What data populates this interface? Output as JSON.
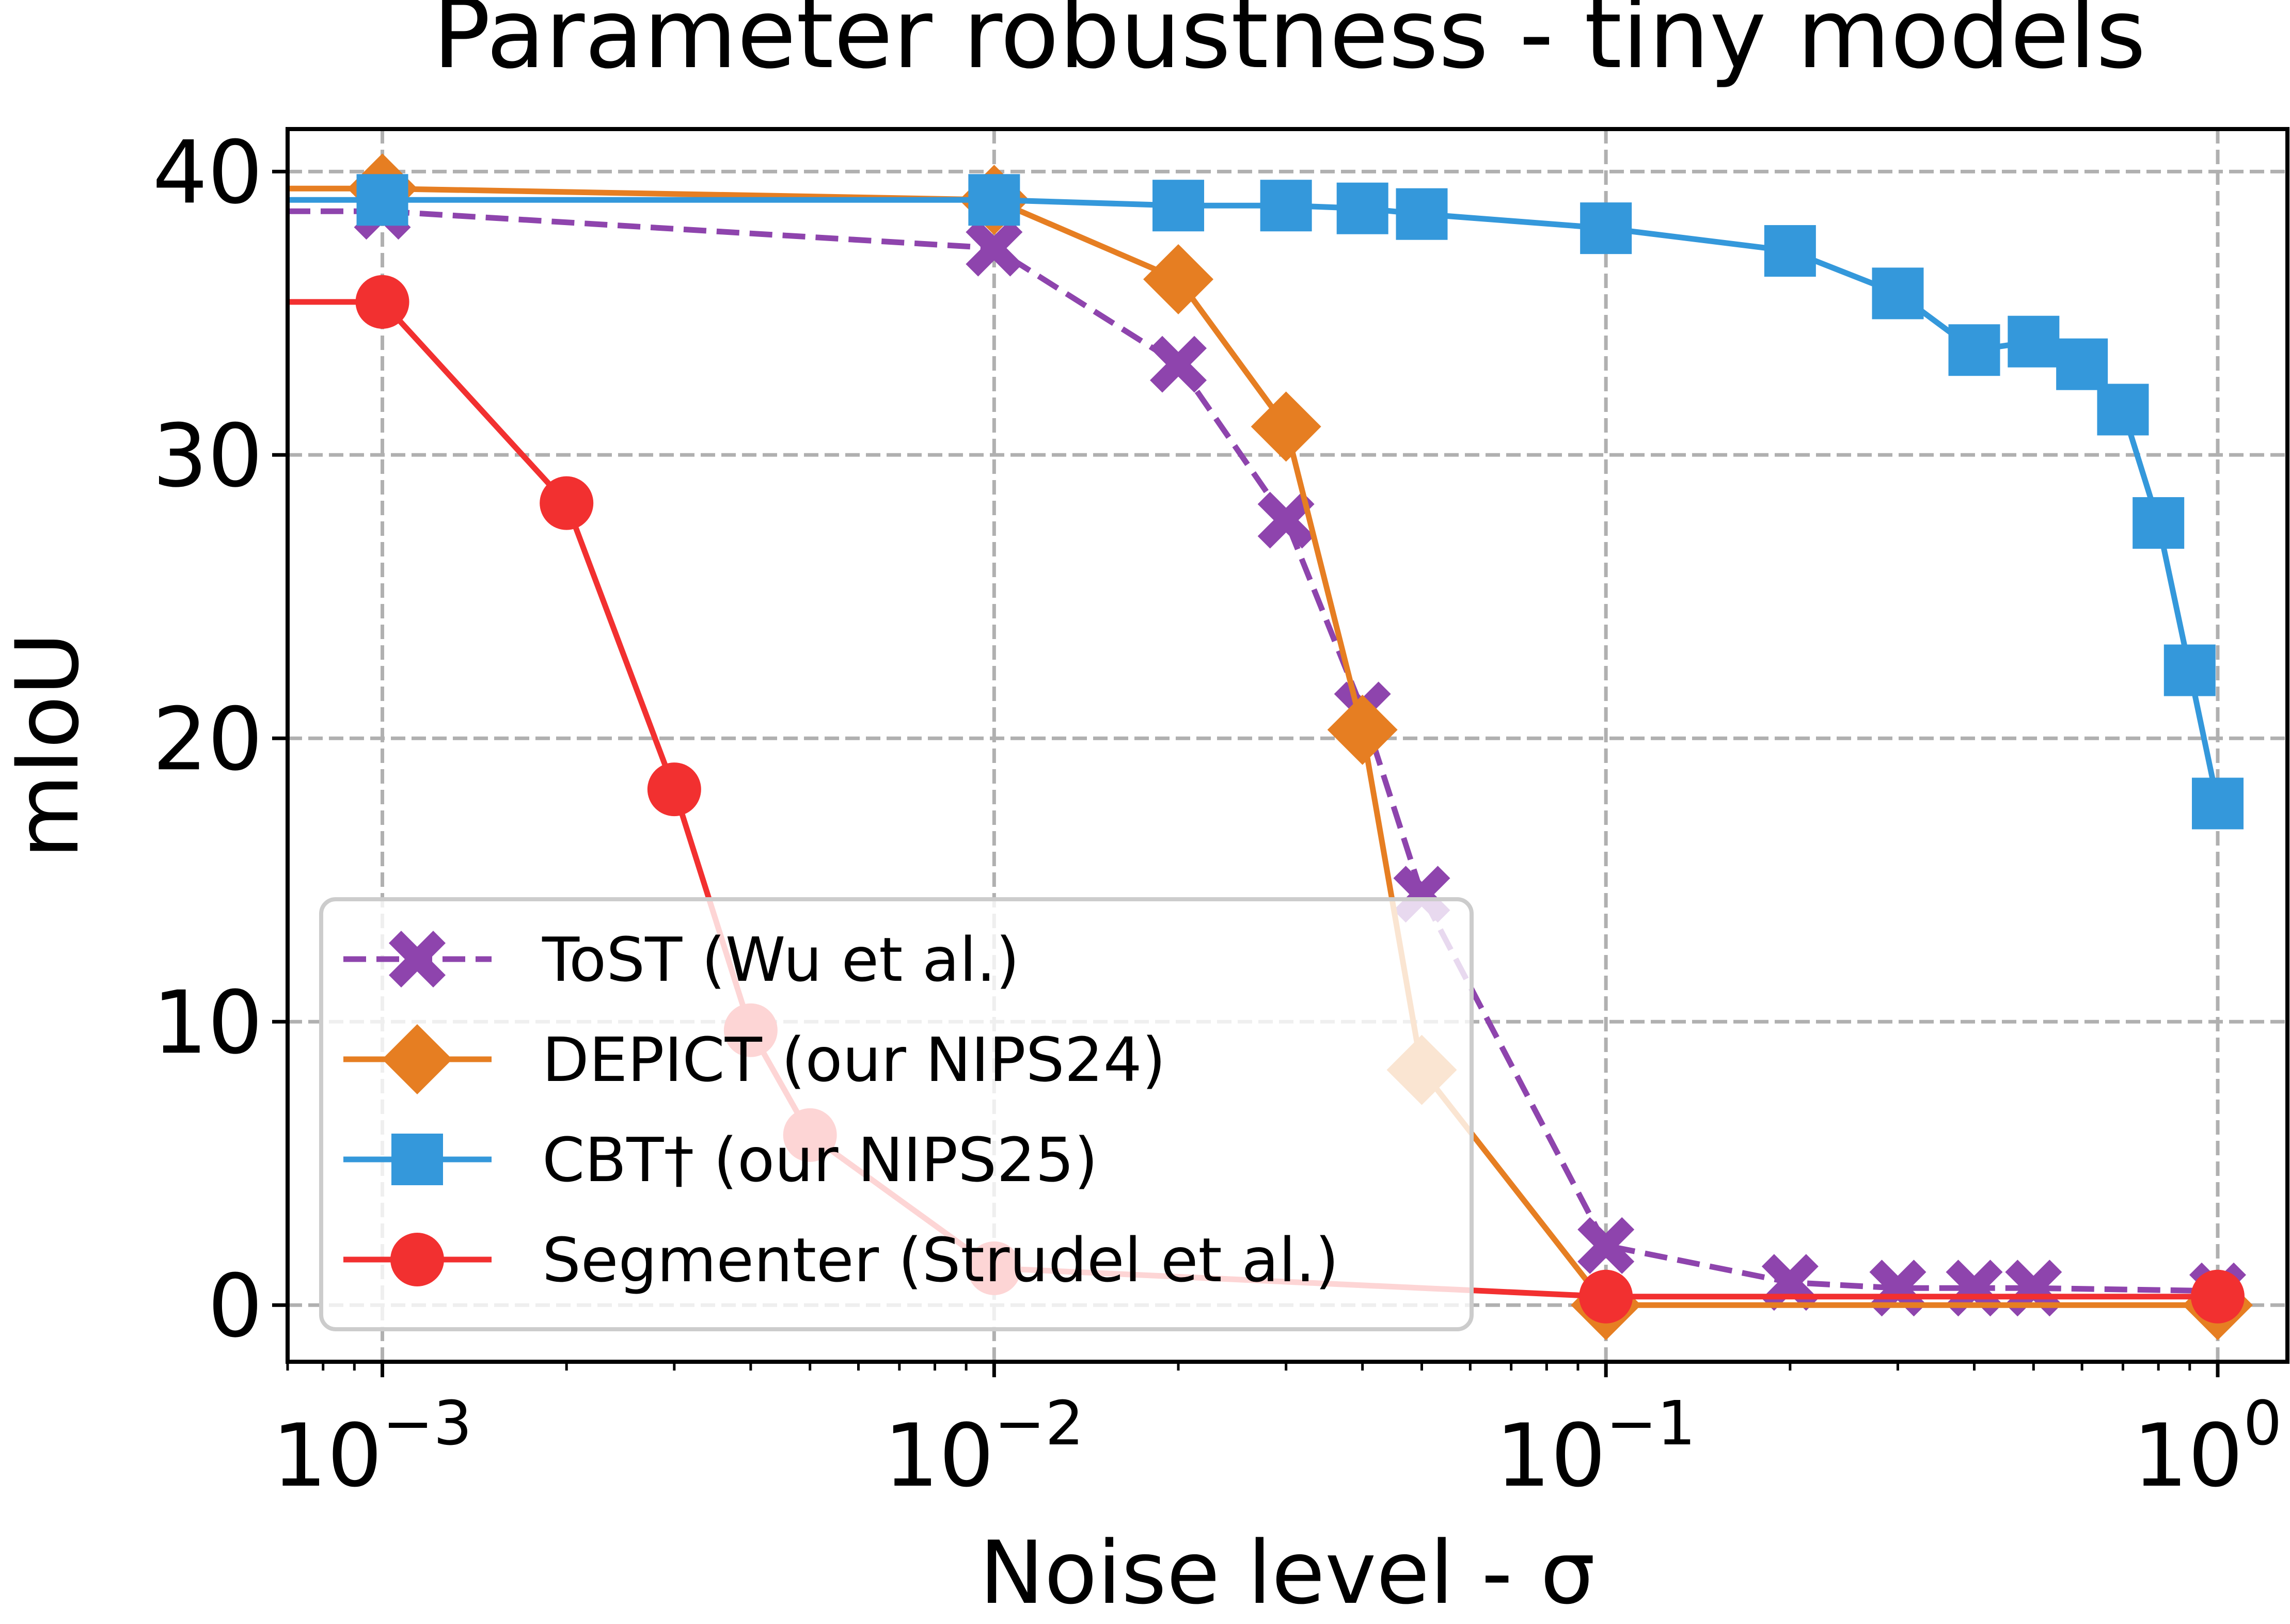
{
  "chart_data": {
    "type": "line",
    "title": "Parameter robustness - tiny models",
    "xlabel": "Noise level - σ",
    "ylabel": "mIoU",
    "xscale": "log",
    "xlim": [
      0.0007,
      1.3
    ],
    "ylim": [
      -2,
      41.5
    ],
    "xticks": [
      {
        "value": 0.001,
        "base": "10",
        "exp": "−3"
      },
      {
        "value": 0.01,
        "base": "10",
        "exp": "−2"
      },
      {
        "value": 0.1,
        "base": "10",
        "exp": "−1"
      },
      {
        "value": 1,
        "base": "10",
        "exp": "0"
      }
    ],
    "yticks": [
      "0",
      "10",
      "20",
      "30",
      "40"
    ],
    "grid": true,
    "legend_position": "lower-left",
    "series": [
      {
        "name": "ToST (Wu et al.)",
        "color": "#8e44ad",
        "marker": "x",
        "linestyle": "dashed",
        "x": [
          0.0007,
          0.001,
          0.01,
          0.02,
          0.03,
          0.04,
          0.05,
          0.1,
          0.2,
          0.3,
          0.4,
          0.5,
          1.0
        ],
        "y": [
          38.6,
          38.6,
          37.3,
          33.2,
          27.7,
          21.0,
          14.5,
          2.1,
          0.8,
          0.6,
          0.6,
          0.6,
          0.5
        ]
      },
      {
        "name": "DEPICT (our NIPS24)",
        "color": "#e67e22",
        "marker": "diamond",
        "linestyle": "solid",
        "x": [
          0.0007,
          0.001,
          0.01,
          0.02,
          0.03,
          0.04,
          0.05,
          0.1,
          1.0
        ],
        "y": [
          39.4,
          39.4,
          39.0,
          36.2,
          31.0,
          20.3,
          8.3,
          0.0,
          0.0
        ]
      },
      {
        "name": "CBT† (our NIPS25)",
        "color": "#3498db",
        "marker": "square",
        "linestyle": "solid",
        "x": [
          0.0007,
          0.001,
          0.01,
          0.02,
          0.03,
          0.04,
          0.05,
          0.1,
          0.2,
          0.3,
          0.4,
          0.5,
          0.6,
          0.7,
          0.8,
          0.9,
          1.0
        ],
        "y": [
          39.0,
          39.0,
          39.0,
          38.8,
          38.8,
          38.7,
          38.5,
          38.0,
          37.2,
          35.7,
          33.7,
          34.0,
          33.2,
          31.6,
          27.6,
          22.4,
          17.7
        ]
      },
      {
        "name": "Segmenter (Strudel et al.)",
        "color": "#f23030",
        "marker": "circle",
        "linestyle": "solid",
        "x": [
          0.0007,
          0.001,
          0.002,
          0.003,
          0.004,
          0.005,
          0.01,
          0.1,
          1.0
        ],
        "y": [
          35.4,
          35.4,
          28.3,
          18.2,
          9.7,
          6.0,
          1.3,
          0.3,
          0.3
        ]
      }
    ]
  }
}
